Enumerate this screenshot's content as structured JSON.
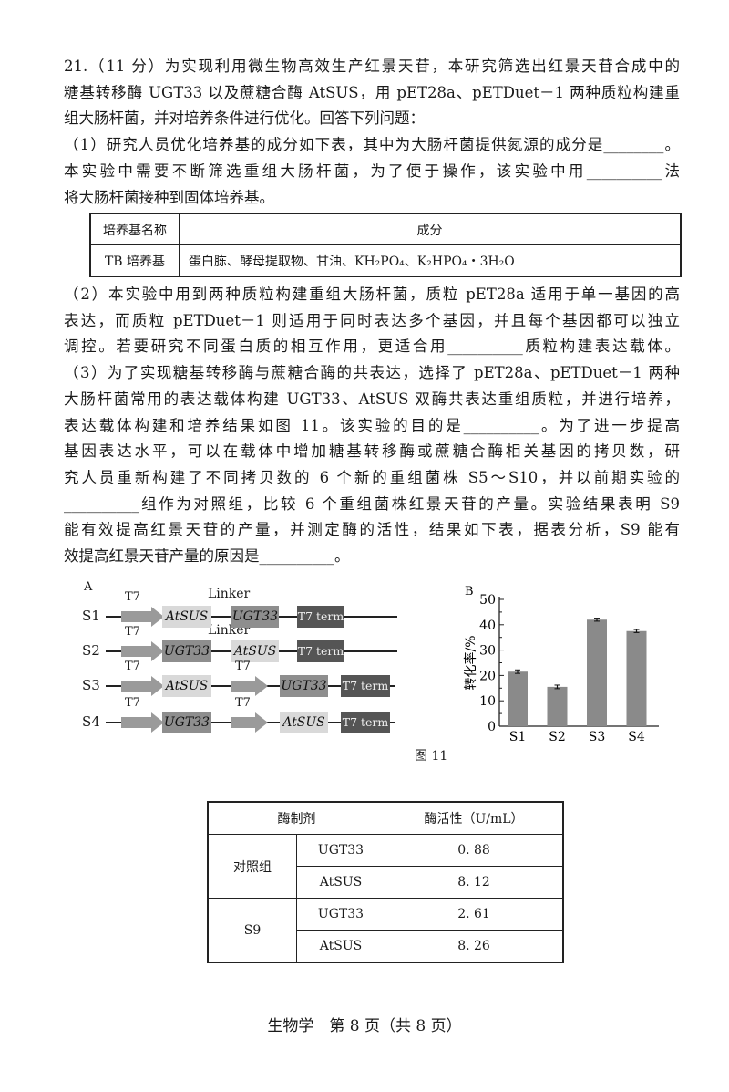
{
  "question": {
    "lines_top": [
      "21.（11 分）为实现利用微生物高效生产红景天苷，本研究筛选出红景天苷合成中的",
      "糖基转移酶 UGT33 以及蔗糖合酶 AtSUS，用 pET28a、pETDuet－1 两种质粒构建重",
      "组大肠杆菌，并对培养条件进行优化。回答下列问题：",
      "（1）研究人员优化培养基的成分如下表，其中为大肠杆菌提供氮源的成分是________。",
      "本实验中需要不断筛选重组大肠杆菌，为了便于操作，该实验中用__________法",
      "将大肠杆菌接种到固体培养基。"
    ],
    "lines_mid": [
      "（2）本实验中用到两种质粒构建重组大肠杆菌，质粒 pET28a 适用于单一基因的高",
      "表达，而质粒 pETDuet－1 则适用于同时表达多个基因，并且每个基因都可以独立",
      "调控。若要研究不同蛋白质的相互作用，更适合用__________质粒构建表达载体。",
      "（3）为了实现糖基转移酶与蔗糖合酶的共表达，选择了 pET28a、pETDuet－1 两种",
      "大肠杆菌常用的表达载体构建 UGT33、AtSUS 双酶共表达重组质粒，并进行培养，",
      "表达载体构建和培养结果如图 11。该实验的目的是__________。为了进一步提高",
      "基因表达水平，可以在载体中增加糖基转移酶或蔗糖合酶相关基因的拷贝数，研",
      "究人员重新构建了不同拷贝数的 6 个新的重组菌株 S5～S10，并以前期实验的",
      "__________组作为对照组，比较 6 个重组菌株红景天苷的产量。实验结果表明 S9",
      "能有效提高红景天苷的产量，并测定酶的活性，结果如下表，据表分析，S9 能有",
      "效提高红景天苷产量的原因是__________。"
    ]
  },
  "medium_table": {
    "headers": [
      "培养基名称",
      "成分"
    ],
    "rows": [
      [
        "TB 培养基",
        "蛋白胨、酵母提取物、甘油、KH₂PO₄、K₂HPO₄・3H₂O"
      ]
    ]
  },
  "figure_a": {
    "label": "A",
    "linker": "Linker",
    "promoter": "T7",
    "terminator": "T7 term",
    "rows": [
      {
        "name": "S1",
        "parts": [
          "T7",
          "AtSUS",
          "UGT33",
          "T7 term"
        ]
      },
      {
        "name": "S2",
        "parts": [
          "T7",
          "UGT33",
          "AtSUS",
          "T7 term"
        ]
      },
      {
        "name": "S3",
        "parts": [
          "T7",
          "AtSUS",
          "T7",
          "UGT33",
          "T7 term"
        ]
      },
      {
        "name": "S4",
        "parts": [
          "T7",
          "UGT33",
          "T7",
          "AtSUS",
          "T7 term"
        ]
      }
    ],
    "colors": {
      "AtSUS": "#d9d9d9",
      "UGT33": "#8e8e8e",
      "term": "#555555",
      "promoter": "#9a9a9a"
    }
  },
  "chart_data": {
    "type": "bar",
    "panel_label": "B",
    "categories": [
      "S1",
      "S2",
      "S3",
      "S4"
    ],
    "values": [
      21.5,
      15.5,
      42,
      37.5
    ],
    "errors": [
      0.7,
      0.7,
      0.6,
      0.6
    ],
    "ylabel": "转化率/%",
    "ylim": [
      0,
      50
    ],
    "yticks": [
      0,
      10,
      20,
      30,
      40,
      50
    ],
    "grid": false,
    "bar_color": "#8a8a8a"
  },
  "figure_caption": "图 11",
  "enzyme_table": {
    "headers": [
      "酶制剂",
      "酶活性（U/mL）"
    ],
    "groups": [
      {
        "name": "对照组",
        "rows": [
          [
            "UGT33",
            "0. 88"
          ],
          [
            "AtSUS",
            "8. 12"
          ]
        ]
      },
      {
        "name": "S9",
        "rows": [
          [
            "UGT33",
            "2. 61"
          ],
          [
            "AtSUS",
            "8. 26"
          ]
        ]
      }
    ]
  },
  "footer": "生物学　第 8 页（共 8 页）"
}
